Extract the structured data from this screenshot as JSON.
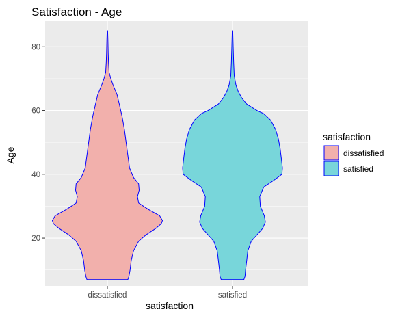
{
  "chart_data": {
    "type": "violin",
    "title": "Satisfaction - Age",
    "xlabel": "satisfaction",
    "ylabel": "Age",
    "categories": [
      "dissatisfied",
      "satisfied"
    ],
    "ylim": [
      5,
      88
    ],
    "yticks": [
      20,
      40,
      60,
      80
    ],
    "grid": true,
    "legend": {
      "title": "satisfaction",
      "position": "right",
      "entries": [
        "dissatisfied",
        "satisfied"
      ]
    },
    "colors": {
      "dissatisfied": "#f2b0ac",
      "satisfied": "#78d6da",
      "outline": "#0000ff",
      "panel": "#ebebeb",
      "grid": "#ffffff"
    },
    "series": [
      {
        "name": "dissatisfied",
        "density_profile": [
          [
            7,
            0.36
          ],
          [
            8,
            0.38
          ],
          [
            10,
            0.4
          ],
          [
            13,
            0.42
          ],
          [
            16,
            0.46
          ],
          [
            19,
            0.55
          ],
          [
            21,
            0.68
          ],
          [
            23,
            0.85
          ],
          [
            24.5,
            0.95
          ],
          [
            25.5,
            0.97
          ],
          [
            27,
            0.92
          ],
          [
            29,
            0.72
          ],
          [
            31,
            0.55
          ],
          [
            33,
            0.53
          ],
          [
            35,
            0.56
          ],
          [
            37,
            0.55
          ],
          [
            39,
            0.46
          ],
          [
            42,
            0.39
          ],
          [
            46,
            0.36
          ],
          [
            50,
            0.33
          ],
          [
            54,
            0.3
          ],
          [
            58,
            0.26
          ],
          [
            62,
            0.21
          ],
          [
            65,
            0.17
          ],
          [
            68,
            0.1
          ],
          [
            70,
            0.06
          ],
          [
            72,
            0.03
          ],
          [
            75,
            0.02
          ],
          [
            78,
            0.015
          ],
          [
            82,
            0.01
          ],
          [
            85,
            0.005
          ]
        ]
      },
      {
        "name": "satisfied",
        "density_profile": [
          [
            7,
            0.2
          ],
          [
            8,
            0.22
          ],
          [
            10,
            0.23
          ],
          [
            13,
            0.25
          ],
          [
            16,
            0.27
          ],
          [
            19,
            0.33
          ],
          [
            21,
            0.43
          ],
          [
            23,
            0.53
          ],
          [
            25,
            0.58
          ],
          [
            27,
            0.56
          ],
          [
            30,
            0.49
          ],
          [
            33,
            0.48
          ],
          [
            36,
            0.55
          ],
          [
            38,
            0.72
          ],
          [
            40,
            0.87
          ],
          [
            42,
            0.88
          ],
          [
            45,
            0.86
          ],
          [
            48,
            0.84
          ],
          [
            51,
            0.81
          ],
          [
            54,
            0.76
          ],
          [
            57,
            0.67
          ],
          [
            59,
            0.55
          ],
          [
            60,
            0.43
          ],
          [
            62,
            0.25
          ],
          [
            64,
            0.16
          ],
          [
            66,
            0.1
          ],
          [
            68,
            0.06
          ],
          [
            71,
            0.03
          ],
          [
            75,
            0.02
          ],
          [
            80,
            0.012
          ],
          [
            85,
            0.005
          ]
        ]
      }
    ]
  }
}
